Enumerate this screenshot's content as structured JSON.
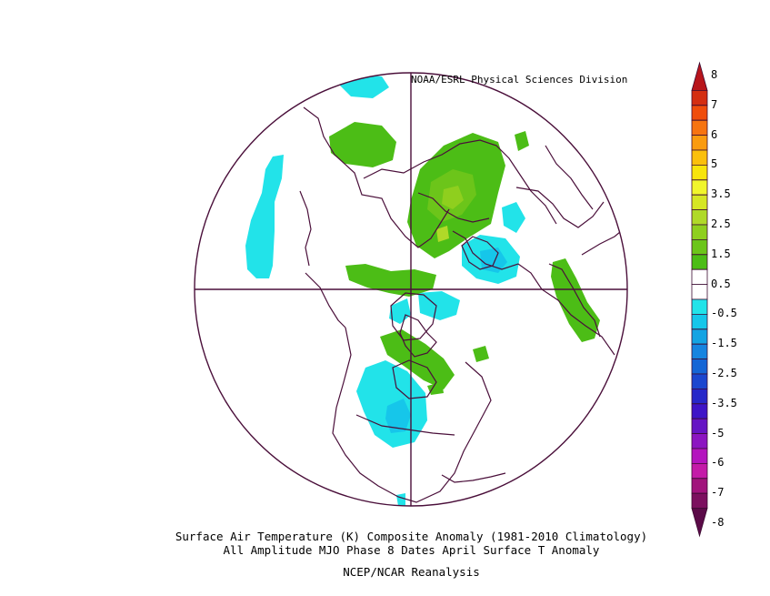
{
  "credit": "NOAA/ESRL Physical Sciences Division",
  "caption": {
    "line1": "Surface Air Temperature (K) Composite Anomaly (1981-2010 Climatology)",
    "line2": "All Amplitude MJO Phase 8 Dates April Surface T Anomaly",
    "line3": "NCEP/NCAR Reanalysis"
  },
  "colorbar": {
    "labels": [
      "8",
      "7",
      "6",
      "5",
      "3.5",
      "2.5",
      "1.5",
      "0.5",
      "-0.5",
      "-1.5",
      "-2.5",
      "-3.5",
      "-5",
      "-6",
      "-7",
      "-8"
    ],
    "colors": [
      "#b8151c",
      "#d42d12",
      "#f04c0c",
      "#f77311",
      "#fa9a10",
      "#fbbf0c",
      "#f8e40b",
      "#f1f52b",
      "#d6e624",
      "#b0d928",
      "#8fcf1e",
      "#6cc51a",
      "#4cbd16",
      "#ffffff",
      "#ffffff",
      "#22e3e9",
      "#16c6ea",
      "#14a3e3",
      "#1784e0",
      "#1565d6",
      "#1c46cf",
      "#2727c9",
      "#3f14c7",
      "#6614c4",
      "#8c14c1",
      "#b414be",
      "#c41aa8",
      "#a1137c",
      "#7c0f5f",
      "#5b0a48"
    ]
  }
}
